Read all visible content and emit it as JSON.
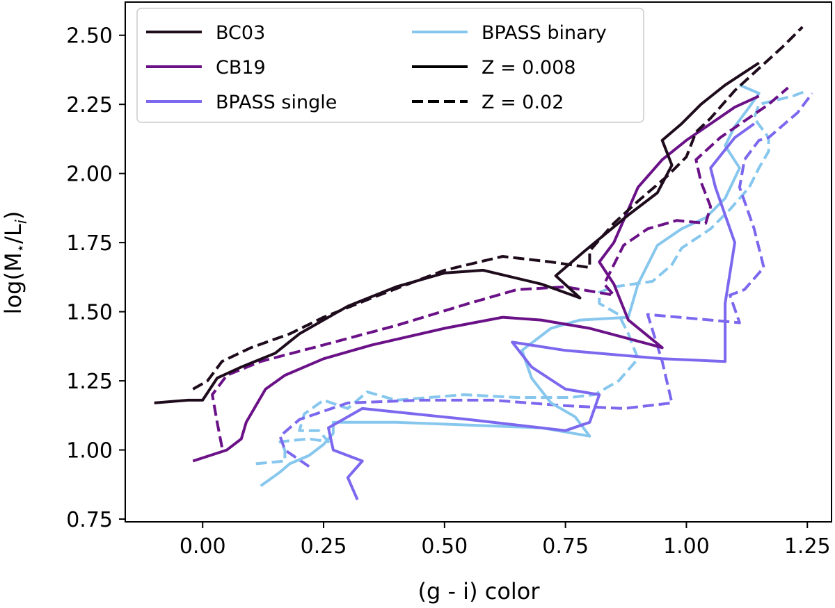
{
  "chart_data": {
    "type": "line",
    "title": "",
    "xlabel": "(g - i) color",
    "ylabel_parts": {
      "main": "log(M",
      "star": "⋆",
      "mid": "/L",
      "sub": "i",
      "end": ")"
    },
    "xlim": [
      -0.16,
      1.3
    ],
    "ylim": [
      0.74,
      2.62
    ],
    "xticks": [
      0.0,
      0.25,
      0.5,
      0.75,
      1.0,
      1.25
    ],
    "xtick_labels": [
      "0.00",
      "0.25",
      "0.50",
      "0.75",
      "1.00",
      "1.25"
    ],
    "yticks": [
      0.75,
      1.0,
      1.25,
      1.5,
      1.75,
      2.0,
      2.25,
      2.5
    ],
    "ytick_labels": [
      "0.75",
      "1.00",
      "1.25",
      "1.50",
      "1.75",
      "2.00",
      "2.25",
      "2.50"
    ],
    "grid": false,
    "legend_position": "top-left",
    "colors": {
      "BC03": "#1e0b1c",
      "CB19": "#6a1187",
      "BPASS single": "#7b68ee",
      "BPASS binary": "#87c7ee",
      "style": "#000000"
    },
    "legend": [
      {
        "label": "BC03",
        "color": "#1e0b1c",
        "dash": false
      },
      {
        "label": "CB19",
        "color": "#6a1187",
        "dash": false
      },
      {
        "label": "BPASS single",
        "color": "#7b68ee",
        "dash": false
      },
      {
        "label": "BPASS binary",
        "color": "#87c7ee",
        "dash": false
      },
      {
        "label": "Z = 0.008",
        "color": "#000000",
        "dash": false
      },
      {
        "label": "Z = 0.02",
        "color": "#000000",
        "dash": true
      }
    ],
    "series": [
      {
        "model": "BPASS binary",
        "Z": "0.02",
        "color": "#87c7ee",
        "dash": true,
        "points": [
          [
            0.11,
            0.95
          ],
          [
            0.17,
            0.96
          ],
          [
            0.17,
            1.0
          ],
          [
            0.16,
            1.03
          ],
          [
            0.22,
            1.04
          ],
          [
            0.26,
            1.03
          ],
          [
            0.24,
            1.07
          ],
          [
            0.2,
            1.07
          ],
          [
            0.21,
            1.13
          ],
          [
            0.25,
            1.18
          ],
          [
            0.3,
            1.15
          ],
          [
            0.34,
            1.21
          ],
          [
            0.4,
            1.18
          ],
          [
            0.54,
            1.2
          ],
          [
            0.65,
            1.19
          ],
          [
            0.76,
            1.19
          ],
          [
            0.81,
            1.2
          ],
          [
            0.86,
            1.25
          ],
          [
            0.9,
            1.33
          ],
          [
            0.88,
            1.42
          ],
          [
            0.86,
            1.49
          ],
          [
            0.82,
            1.53
          ],
          [
            0.82,
            1.57
          ],
          [
            0.85,
            1.59
          ],
          [
            0.93,
            1.61
          ],
          [
            0.97,
            1.67
          ],
          [
            0.99,
            1.73
          ],
          [
            1.05,
            1.8
          ],
          [
            1.09,
            1.87
          ],
          [
            1.13,
            1.95
          ],
          [
            1.15,
            2.02
          ],
          [
            1.17,
            2.08
          ],
          [
            1.17,
            2.13
          ],
          [
            1.14,
            2.2
          ],
          [
            1.15,
            2.25
          ],
          [
            1.22,
            2.28
          ],
          [
            1.25,
            2.3
          ]
        ]
      },
      {
        "model": "BPASS single",
        "Z": "0.02",
        "color": "#7b68ee",
        "dash": true,
        "points": [
          [
            0.22,
            0.94
          ],
          [
            0.17,
            1.0
          ],
          [
            0.16,
            1.05
          ],
          [
            0.2,
            1.11
          ],
          [
            0.3,
            1.17
          ],
          [
            0.45,
            1.18
          ],
          [
            0.6,
            1.18
          ],
          [
            0.75,
            1.16
          ],
          [
            0.87,
            1.15
          ],
          [
            0.97,
            1.17
          ],
          [
            0.95,
            1.32
          ],
          [
            0.92,
            1.49
          ],
          [
            1.05,
            1.47
          ],
          [
            1.11,
            1.46
          ],
          [
            1.09,
            1.56
          ],
          [
            1.12,
            1.58
          ],
          [
            1.16,
            1.66
          ],
          [
            1.14,
            1.8
          ],
          [
            1.11,
            1.95
          ],
          [
            1.12,
            2.05
          ],
          [
            1.15,
            2.12
          ],
          [
            1.17,
            2.13
          ],
          [
            1.23,
            2.22
          ],
          [
            1.26,
            2.29
          ]
        ]
      },
      {
        "model": "BPASS binary",
        "Z": "0.008",
        "color": "#87c7ee",
        "dash": false,
        "points": [
          [
            0.12,
            0.87
          ],
          [
            0.16,
            0.92
          ],
          [
            0.18,
            0.95
          ],
          [
            0.22,
            0.98
          ],
          [
            0.25,
            1.02
          ],
          [
            0.27,
            1.06
          ],
          [
            0.27,
            1.1
          ],
          [
            0.4,
            1.1
          ],
          [
            0.55,
            1.09
          ],
          [
            0.7,
            1.08
          ],
          [
            0.8,
            1.05
          ],
          [
            0.77,
            1.12
          ],
          [
            0.72,
            1.17
          ],
          [
            0.68,
            1.26
          ],
          [
            0.66,
            1.36
          ],
          [
            0.72,
            1.44
          ],
          [
            0.78,
            1.47
          ],
          [
            0.88,
            1.48
          ],
          [
            0.9,
            1.6
          ],
          [
            0.94,
            1.74
          ],
          [
            0.99,
            1.8
          ],
          [
            1.04,
            1.84
          ],
          [
            1.08,
            1.91
          ],
          [
            1.11,
            2.02
          ],
          [
            1.08,
            2.1
          ],
          [
            1.1,
            2.17
          ],
          [
            1.13,
            2.24
          ],
          [
            1.15,
            2.29
          ],
          [
            1.11,
            2.32
          ]
        ]
      },
      {
        "model": "BPASS single",
        "Z": "0.008",
        "color": "#7b68ee",
        "dash": false,
        "points": [
          [
            0.32,
            0.82
          ],
          [
            0.3,
            0.9
          ],
          [
            0.33,
            0.96
          ],
          [
            0.27,
            1.0
          ],
          [
            0.26,
            1.08
          ],
          [
            0.33,
            1.15
          ],
          [
            0.55,
            1.11
          ],
          [
            0.75,
            1.07
          ],
          [
            0.8,
            1.1
          ],
          [
            0.82,
            1.2
          ],
          [
            0.75,
            1.22
          ],
          [
            0.68,
            1.3
          ],
          [
            0.64,
            1.39
          ],
          [
            0.75,
            1.36
          ],
          [
            0.95,
            1.33
          ],
          [
            1.08,
            1.32
          ],
          [
            1.08,
            1.53
          ],
          [
            1.1,
            1.75
          ],
          [
            1.06,
            1.95
          ],
          [
            1.05,
            2.02
          ],
          [
            1.1,
            2.13
          ],
          [
            1.14,
            2.18
          ]
        ]
      },
      {
        "model": "CB19",
        "Z": "0.02",
        "color": "#6a1187",
        "dash": true,
        "points": [
          [
            0.04,
            1.01
          ],
          [
            0.03,
            1.1
          ],
          [
            0.02,
            1.2
          ],
          [
            0.05,
            1.27
          ],
          [
            0.12,
            1.32
          ],
          [
            0.25,
            1.38
          ],
          [
            0.4,
            1.45
          ],
          [
            0.55,
            1.53
          ],
          [
            0.65,
            1.58
          ],
          [
            0.75,
            1.59
          ],
          [
            0.85,
            1.56
          ],
          [
            0.83,
            1.6
          ],
          [
            0.85,
            1.67
          ],
          [
            0.87,
            1.74
          ],
          [
            0.92,
            1.8
          ],
          [
            0.98,
            1.83
          ],
          [
            1.04,
            1.82
          ],
          [
            1.05,
            1.88
          ],
          [
            1.03,
            1.97
          ],
          [
            1.02,
            2.05
          ],
          [
            1.07,
            2.13
          ],
          [
            1.12,
            2.19
          ],
          [
            1.17,
            2.25
          ],
          [
            1.21,
            2.31
          ]
        ]
      },
      {
        "model": "CB19",
        "Z": "0.008",
        "color": "#6a1187",
        "dash": false,
        "points": [
          [
            -0.02,
            0.96
          ],
          [
            0.05,
            1.0
          ],
          [
            0.08,
            1.04
          ],
          [
            0.09,
            1.1
          ],
          [
            0.11,
            1.16
          ],
          [
            0.13,
            1.22
          ],
          [
            0.17,
            1.27
          ],
          [
            0.25,
            1.33
          ],
          [
            0.35,
            1.38
          ],
          [
            0.5,
            1.44
          ],
          [
            0.62,
            1.48
          ],
          [
            0.7,
            1.47
          ],
          [
            0.8,
            1.44
          ],
          [
            0.95,
            1.37
          ],
          [
            0.88,
            1.47
          ],
          [
            0.85,
            1.6
          ],
          [
            0.82,
            1.68
          ],
          [
            0.85,
            1.75
          ],
          [
            0.87,
            1.83
          ],
          [
            0.9,
            1.95
          ],
          [
            0.95,
            2.05
          ],
          [
            1.0,
            2.12
          ],
          [
            1.05,
            2.18
          ],
          [
            1.1,
            2.24
          ],
          [
            1.15,
            2.28
          ]
        ]
      },
      {
        "model": "BC03",
        "Z": "0.02",
        "color": "#1e0b1c",
        "dash": true,
        "points": [
          [
            -0.02,
            1.22
          ],
          [
            0.01,
            1.25
          ],
          [
            0.04,
            1.32
          ],
          [
            0.1,
            1.37
          ],
          [
            0.18,
            1.42
          ],
          [
            0.25,
            1.48
          ],
          [
            0.35,
            1.55
          ],
          [
            0.5,
            1.65
          ],
          [
            0.62,
            1.7
          ],
          [
            0.72,
            1.68
          ],
          [
            0.8,
            1.66
          ],
          [
            0.8,
            1.72
          ],
          [
            0.85,
            1.82
          ],
          [
            0.9,
            1.9
          ],
          [
            0.96,
            1.99
          ],
          [
            1.0,
            2.06
          ],
          [
            1.02,
            2.15
          ],
          [
            1.05,
            2.2
          ],
          [
            1.1,
            2.3
          ],
          [
            1.15,
            2.38
          ],
          [
            1.2,
            2.46
          ],
          [
            1.24,
            2.53
          ]
        ]
      },
      {
        "model": "BC03",
        "Z": "0.008",
        "color": "#1e0b1c",
        "dash": false,
        "points": [
          [
            -0.1,
            1.17
          ],
          [
            -0.03,
            1.18
          ],
          [
            0.0,
            1.18
          ],
          [
            0.03,
            1.26
          ],
          [
            0.08,
            1.3
          ],
          [
            0.15,
            1.35
          ],
          [
            0.2,
            1.42
          ],
          [
            0.3,
            1.52
          ],
          [
            0.4,
            1.59
          ],
          [
            0.5,
            1.64
          ],
          [
            0.58,
            1.65
          ],
          [
            0.7,
            1.6
          ],
          [
            0.78,
            1.55
          ],
          [
            0.73,
            1.63
          ],
          [
            0.79,
            1.72
          ],
          [
            0.88,
            1.85
          ],
          [
            0.94,
            1.93
          ],
          [
            0.97,
            2.03
          ],
          [
            0.95,
            2.12
          ],
          [
            0.99,
            2.18
          ],
          [
            1.03,
            2.25
          ],
          [
            1.08,
            2.32
          ],
          [
            1.15,
            2.4
          ]
        ]
      }
    ]
  }
}
